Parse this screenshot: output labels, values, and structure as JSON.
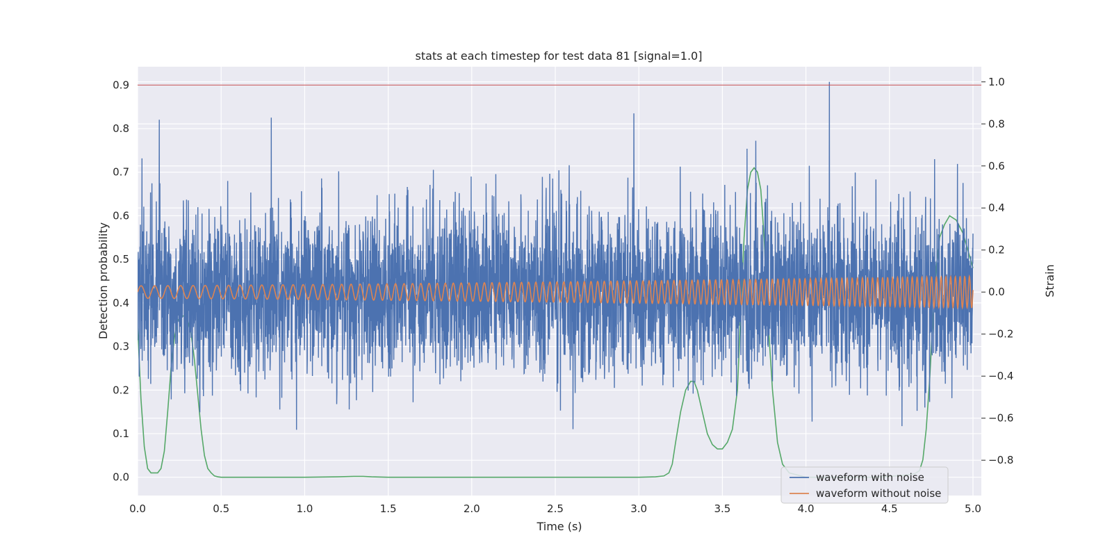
{
  "chart_data": {
    "type": "line",
    "title": "stats at each timestep for test data 81 [signal=1.0]",
    "xlabel": "Time (s)",
    "ylabel": "Detection probability",
    "y2label": "Strain",
    "xlim": [
      0.0,
      5.05
    ],
    "ylim": [
      -0.042,
      0.942
    ],
    "y2lim": [
      -0.968,
      1.072
    ],
    "xticks": [
      "0.0",
      "0.5",
      "1.0",
      "1.5",
      "2.0",
      "2.5",
      "3.0",
      "3.5",
      "4.0",
      "4.5",
      "5.0"
    ],
    "yticks": [
      "0.0",
      "0.1",
      "0.2",
      "0.3",
      "0.4",
      "0.5",
      "0.6",
      "0.7",
      "0.8",
      "0.9"
    ],
    "y2ticks": [
      "−0.8",
      "−0.6",
      "−0.4",
      "−0.2",
      "0.0",
      "0.2",
      "0.4",
      "0.6",
      "0.8",
      "1.0"
    ],
    "grid": true,
    "legend_position": "lower right",
    "colors": {
      "background": "#eaeaf2",
      "grid": "#ffffff",
      "noise": "#4c72b0",
      "clean": "#dd8452",
      "probability": "#55a868",
      "threshold": "#c44e52"
    },
    "threshold": {
      "axis": "left",
      "value": 0.9
    },
    "series": [
      {
        "name": "waveform with noise",
        "axis": "right",
        "description_values": "dense gaussian-like noise around 0 strain, mostly within -0.6..0.6, spikes to 1.0 near t=4.14",
        "spikes": [
          {
            "x": 0.13,
            "y": 0.82
          },
          {
            "x": 0.8,
            "y": 0.83
          },
          {
            "x": 2.13,
            "y": 0.0
          },
          {
            "x": 2.97,
            "y": 0.85
          },
          {
            "x": 4.14,
            "y": 1.0
          },
          {
            "x": 4.97,
            "y": 0.01
          },
          {
            "x": 0.38,
            "y": 0.03
          },
          {
            "x": 3.7,
            "y": 0.72
          },
          {
            "x": 1.36,
            "y": 0.05
          }
        ]
      },
      {
        "name": "waveform without noise",
        "axis": "right",
        "chirp": {
          "amp_start": 0.03,
          "amp_end": 0.075,
          "freq_start": 12,
          "freq_end": 36
        }
      },
      {
        "name": "",
        "axis": "left",
        "x": [
          0.0,
          0.02,
          0.04,
          0.06,
          0.08,
          0.1,
          0.12,
          0.14,
          0.16,
          0.18,
          0.2,
          0.22,
          0.24,
          0.26,
          0.28,
          0.3,
          0.32,
          0.34,
          0.36,
          0.38,
          0.4,
          0.42,
          0.44,
          0.46,
          0.48,
          0.5,
          0.52,
          0.6,
          1.0,
          1.2,
          1.3,
          1.35,
          1.4,
          1.5,
          2.0,
          2.5,
          3.0,
          3.1,
          3.15,
          3.18,
          3.2,
          3.22,
          3.25,
          3.28,
          3.31,
          3.33,
          3.35,
          3.38,
          3.41,
          3.44,
          3.47,
          3.5,
          3.53,
          3.56,
          3.59,
          3.61,
          3.63,
          3.65,
          3.67,
          3.69,
          3.71,
          3.73,
          3.75,
          3.77,
          3.8,
          3.83,
          3.86,
          3.9,
          4.0,
          4.3,
          4.4,
          4.5,
          4.6,
          4.65,
          4.68,
          4.7,
          4.72,
          4.74,
          4.76,
          4.78,
          4.8,
          4.83,
          4.86,
          4.9,
          4.94,
          4.97,
          5.0
        ],
        "y": [
          0.35,
          0.18,
          0.07,
          0.02,
          0.01,
          0.01,
          0.01,
          0.02,
          0.06,
          0.15,
          0.25,
          0.32,
          0.36,
          0.37,
          0.37,
          0.36,
          0.33,
          0.27,
          0.19,
          0.11,
          0.05,
          0.02,
          0.01,
          0.003,
          0.001,
          0.0,
          0.0,
          0.0,
          0.0,
          0.001,
          0.002,
          0.002,
          0.001,
          0.0,
          0.0,
          0.0,
          0.0,
          0.001,
          0.003,
          0.01,
          0.03,
          0.08,
          0.15,
          0.2,
          0.22,
          0.22,
          0.2,
          0.15,
          0.1,
          0.075,
          0.065,
          0.065,
          0.08,
          0.11,
          0.2,
          0.38,
          0.55,
          0.66,
          0.7,
          0.71,
          0.7,
          0.66,
          0.55,
          0.38,
          0.2,
          0.08,
          0.03,
          0.01,
          0.0,
          0.0,
          0.0,
          0.002,
          0.005,
          0.008,
          0.015,
          0.04,
          0.11,
          0.22,
          0.36,
          0.48,
          0.55,
          0.58,
          0.6,
          0.59,
          0.56,
          0.52,
          0.48
        ]
      }
    ]
  }
}
